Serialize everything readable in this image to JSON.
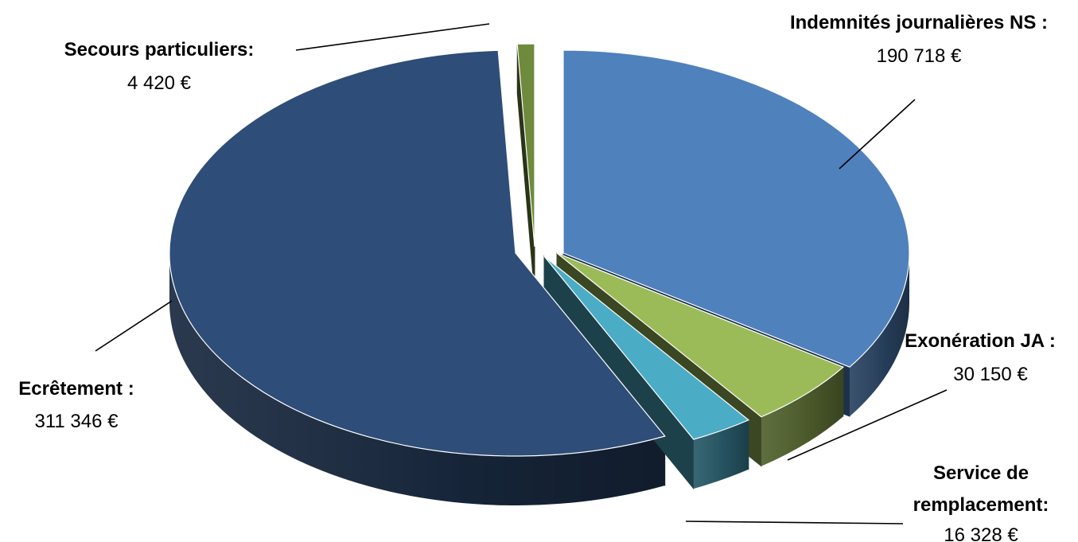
{
  "chart_data": {
    "type": "pie",
    "style": "3d-exploded",
    "legend": "none",
    "slices": [
      {
        "key": "ns",
        "label_lines": [
          "Indemnités journalières NS :"
        ],
        "value": 190718,
        "value_label": "190 718 €",
        "color": "#4F81BD"
      },
      {
        "key": "ja",
        "label_lines": [
          "Exonération JA :"
        ],
        "value": 30150,
        "value_label": "30 150 €",
        "color": "#9BBB59"
      },
      {
        "key": "service",
        "label_lines": [
          "Service de",
          "remplacement:"
        ],
        "value": 16328,
        "value_label": "16 328 €",
        "color": "#4BACC6"
      },
      {
        "key": "ecret",
        "label_lines": [
          "Ecrêtement :"
        ],
        "value": 311346,
        "value_label": "311 346 €",
        "color": "#2E4D78"
      },
      {
        "key": "secours",
        "label_lines": [
          "Secours particuliers:"
        ],
        "value": 4420,
        "value_label": "4 420 €",
        "color": "#6E8B3D"
      }
    ]
  }
}
